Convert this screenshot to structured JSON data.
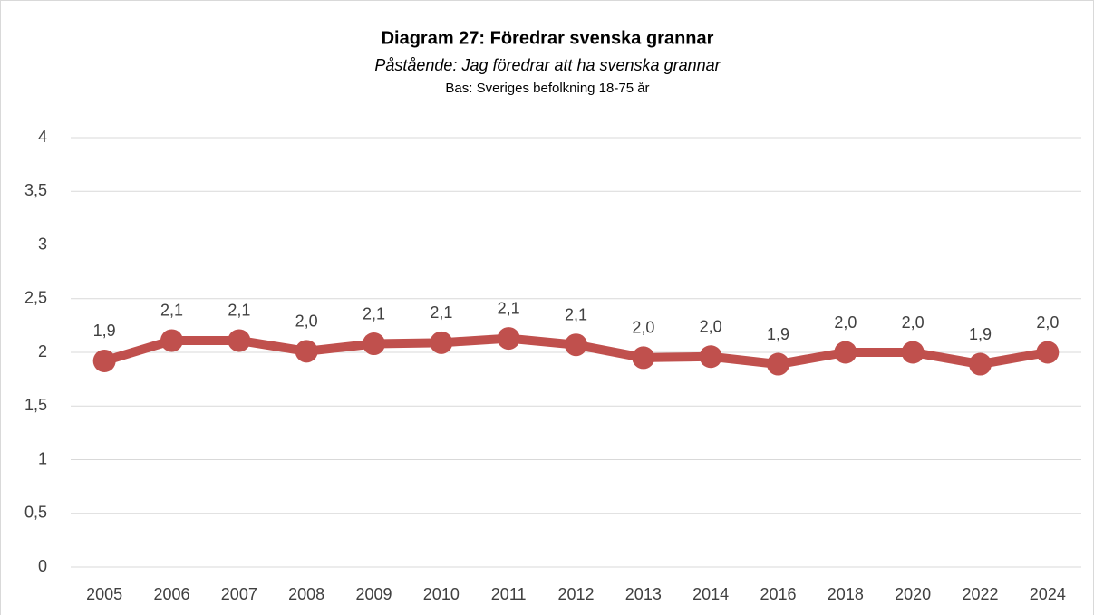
{
  "chart_data": {
    "type": "line",
    "title": "Diagram 27: Föredrar svenska grannar",
    "subtitle": "Påstående: Jag föredrar att ha svenska grannar",
    "note": "Bas: Sveriges befolkning 18-75 år",
    "categories": [
      "2005",
      "2006",
      "2007",
      "2008",
      "2009",
      "2010",
      "2011",
      "2012",
      "2013",
      "2014",
      "2016",
      "2018",
      "2020",
      "2022",
      "2024"
    ],
    "series": [
      {
        "name": "Föredrar svenska grannar",
        "color": "#c0504d",
        "values": [
          1.92,
          2.11,
          2.11,
          2.01,
          2.08,
          2.09,
          2.13,
          2.07,
          1.95,
          1.96,
          1.89,
          2.0,
          2.0,
          1.89,
          2.0
        ],
        "value_labels": [
          "1,9",
          "2,1",
          "2,1",
          "2,0",
          "2,1",
          "2,1",
          "2,1",
          "2,1",
          "2,0",
          "2,0",
          "1,9",
          "2,0",
          "2,0",
          "1,9",
          "2,0"
        ]
      }
    ],
    "ylim": [
      0,
      4
    ],
    "yticks": [
      0,
      {
        "value": 0.5,
        "label": "0,5"
      },
      1,
      {
        "value": 1.5,
        "label": "1,5"
      },
      2,
      {
        "value": 2.5,
        "label": "2,5"
      },
      3,
      {
        "value": 3.5,
        "label": "3,5"
      },
      4
    ],
    "grid": true
  }
}
